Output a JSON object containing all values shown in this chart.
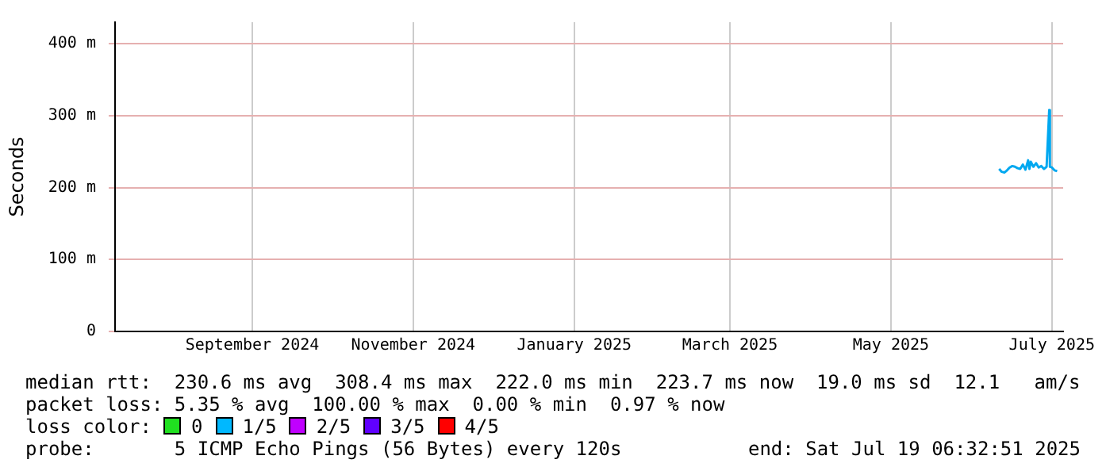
{
  "chart_data": {
    "type": "line",
    "ylabel": "Seconds",
    "x": [
      "2025-06-25",
      "2025-06-26",
      "2025-06-27",
      "2025-06-28",
      "2025-06-29",
      "2025-06-30",
      "2025-07-01",
      "2025-07-02",
      "2025-07-03",
      "2025-07-04",
      "2025-07-05",
      "2025-07-06",
      "2025-07-06T12:00",
      "2025-07-07",
      "2025-07-08",
      "2025-07-09",
      "2025-07-10",
      "2025-07-11",
      "2025-07-12",
      "2025-07-13",
      "2025-07-14",
      "2025-07-14T06:00",
      "2025-07-15",
      "2025-07-16",
      "2025-07-17"
    ],
    "series": [
      {
        "color": "#00a8f0",
        "values": [
          226,
          222,
          221,
          224,
          228,
          230,
          229,
          227,
          226,
          232,
          225,
          238,
          226,
          236,
          229,
          234,
          228,
          230,
          226,
          229,
          308,
          229,
          228,
          224,
          223
        ]
      }
    ],
    "xlim": [
      "2024-07-25",
      "2025-07-19T06:32"
    ],
    "xticks": [
      {
        "value": "2024-09-15",
        "label": "September 2024"
      },
      {
        "value": "2024-11-15",
        "label": "November 2024"
      },
      {
        "value": "2025-01-15",
        "label": "January 2025"
      },
      {
        "value": "2025-03-15",
        "label": "March 2025"
      },
      {
        "value": "2025-05-15",
        "label": "May 2025"
      },
      {
        "value": "2025-07-15",
        "label": "July 2025"
      }
    ],
    "ylim": [
      0,
      430
    ],
    "yticks": [
      0,
      {
        "value": 100,
        "label": "100 m"
      },
      {
        "value": 200,
        "label": "200 m"
      },
      {
        "value": 300,
        "label": "300 m"
      },
      {
        "value": 400,
        "label": "400 m"
      }
    ],
    "grid": true,
    "legend": false,
    "marker": "none",
    "line_style": "solid",
    "annotations": [
      "median rtt:  230.6 ms avg  308.4 ms max  222.0 ms min  223.7 ms now  19.0 ms sd  12.1   am/s",
      "packet loss: 5.35 % avg  100.00 % max  0.00 % min  0.97 % now",
      "loss color:",
      "0",
      "1/5",
      "2/5",
      "3/5",
      "4/5",
      "probe:       5 ICMP Echo Pings (56 Bytes) every 120s",
      "end: Sat Jul 19 06:32:51 2025"
    ]
  }
}
